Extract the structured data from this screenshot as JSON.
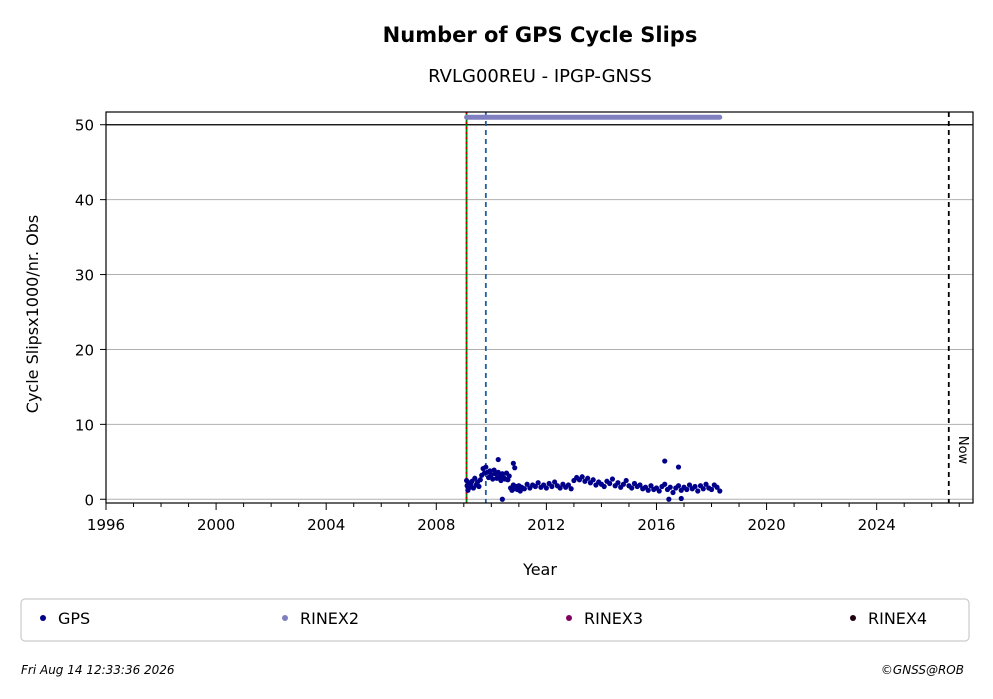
{
  "chart_data": {
    "type": "scatter",
    "title": "Number of GPS Cycle Slips",
    "subtitle": "RVLG00REU - IPGP-GNSS",
    "xlabel": "Year",
    "ylabel": "Cycle Slipsx1000/nr. Obs",
    "xlim": [
      1996,
      2027.5
    ],
    "ylim": [
      -0.5,
      51.7
    ],
    "x_ticks": [
      1996,
      2000,
      2004,
      2008,
      2012,
      2016,
      2020,
      2024
    ],
    "y_ticks": [
      0,
      10,
      20,
      30,
      40,
      50
    ],
    "grid": "horizontal",
    "reference_line_y": 50,
    "vertical_markers": [
      {
        "x": 2009.1,
        "color": "#008000",
        "style": "solid"
      },
      {
        "x": 2009.1,
        "color": "#cc0000",
        "style": "dotted"
      },
      {
        "x": 2009.8,
        "color": "#1f5fa0",
        "style": "dashed"
      },
      {
        "x": 2026.62,
        "color": "#000000",
        "style": "dashed",
        "label": "Now"
      }
    ],
    "rinex2_coverage": {
      "name": "RINEX2",
      "x_start": 2009.1,
      "x_end": 2018.3,
      "y": 51,
      "color": "#8080c0"
    },
    "series": [
      {
        "name": "GPS",
        "color": "#00008b",
        "x": [
          2009.1,
          2009.12,
          2009.15,
          2009.18,
          2009.22,
          2009.25,
          2009.3,
          2009.35,
          2009.4,
          2009.45,
          2009.5,
          2009.55,
          2009.6,
          2009.65,
          2009.7,
          2009.75,
          2009.8,
          2009.85,
          2009.9,
          2009.95,
          2010.0,
          2010.05,
          2010.1,
          2010.15,
          2010.2,
          2010.25,
          2010.3,
          2010.35,
          2010.4,
          2010.45,
          2010.5,
          2010.55,
          2010.6,
          2010.65,
          2010.7,
          2010.75,
          2010.8,
          2010.85,
          2010.9,
          2010.95,
          2011.0,
          2011.05,
          2011.1,
          2011.2,
          2011.3,
          2011.4,
          2011.5,
          2011.6,
          2011.7,
          2011.8,
          2011.9,
          2012.0,
          2012.1,
          2012.2,
          2012.3,
          2012.4,
          2012.5,
          2012.6,
          2012.7,
          2012.8,
          2012.9,
          2013.0,
          2013.1,
          2013.2,
          2013.3,
          2013.4,
          2013.5,
          2013.6,
          2013.7,
          2013.8,
          2013.9,
          2014.0,
          2014.1,
          2014.2,
          2014.3,
          2014.4,
          2014.5,
          2014.6,
          2014.7,
          2014.8,
          2014.9,
          2015.0,
          2015.1,
          2015.2,
          2015.3,
          2015.4,
          2015.5,
          2015.6,
          2015.7,
          2015.8,
          2015.9,
          2016.0,
          2016.1,
          2016.2,
          2016.3,
          2016.4,
          2016.5,
          2016.6,
          2016.7,
          2016.8,
          2016.9,
          2017.0,
          2017.1,
          2017.2,
          2017.3,
          2017.4,
          2017.5,
          2017.6,
          2017.7,
          2017.8,
          2017.9,
          2018.0,
          2018.1,
          2018.2,
          2018.3,
          2010.25,
          2010.8,
          2010.85,
          2016.3,
          2016.8,
          2016.45,
          2010.4,
          2016.9
        ],
        "values": [
          2.5,
          1.8,
          1.2,
          2.2,
          1.6,
          2.0,
          2.4,
          1.5,
          2.8,
          1.9,
          2.3,
          1.7,
          2.6,
          3.2,
          4.1,
          3.5,
          4.3,
          3.6,
          2.9,
          3.8,
          3.3,
          2.7,
          3.9,
          3.4,
          2.8,
          3.6,
          3.0,
          2.5,
          3.4,
          2.9,
          2.7,
          3.5,
          2.6,
          3.1,
          1.5,
          1.2,
          1.9,
          1.4,
          1.7,
          1.3,
          1.8,
          1.1,
          1.6,
          1.4,
          2.0,
          1.5,
          1.9,
          1.7,
          2.2,
          1.6,
          1.9,
          1.5,
          2.1,
          1.7,
          2.3,
          1.8,
          1.5,
          2.0,
          1.6,
          1.9,
          1.4,
          2.5,
          2.9,
          2.6,
          3.0,
          2.4,
          2.8,
          2.2,
          2.6,
          1.9,
          2.3,
          2.0,
          1.7,
          2.4,
          2.1,
          2.7,
          1.8,
          2.2,
          1.6,
          2.0,
          2.5,
          1.8,
          1.5,
          2.1,
          1.7,
          1.9,
          1.4,
          1.6,
          1.2,
          1.8,
          1.3,
          1.5,
          1.1,
          1.7,
          2.0,
          1.3,
          1.6,
          0.9,
          1.5,
          1.8,
          1.2,
          1.6,
          1.3,
          1.9,
          1.4,
          1.7,
          1.1,
          1.8,
          1.4,
          2.0,
          1.5,
          1.3,
          1.9,
          1.6,
          1.1,
          5.3,
          4.8,
          4.2,
          5.1,
          4.3,
          0.0,
          0.0,
          0.1
        ]
      },
      {
        "name": "RINEX2",
        "color": "#8080c0",
        "x": [],
        "values": []
      },
      {
        "name": "RINEX3",
        "color": "#800060",
        "x": [],
        "values": []
      },
      {
        "name": "RINEX4",
        "color": "#200010",
        "x": [],
        "values": []
      }
    ],
    "legend_placement": "below"
  },
  "footer": {
    "timestamp": "Fri Aug 14 12:33:36 2026",
    "credit": "©GNSS@ROB"
  }
}
